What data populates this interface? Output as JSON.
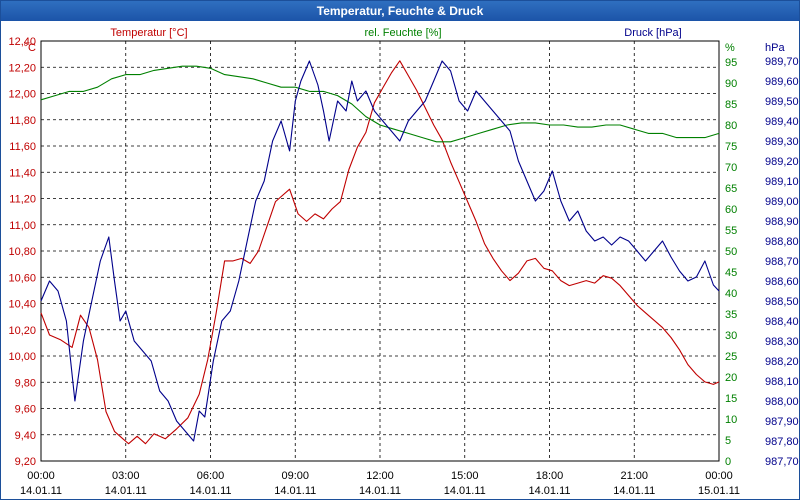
{
  "window": {
    "title": "Temperatur, Feuchte & Druck"
  },
  "chart_data": {
    "type": "line",
    "title": "Temperatur, Feuchte & Druck",
    "grid": true,
    "x": [
      "00:00",
      "03:00",
      "06:00",
      "09:00",
      "12:00",
      "15:00",
      "18:00",
      "21:00",
      "00:00"
    ],
    "x_dates": [
      "14.01.11",
      "14.01.11",
      "14.01.11",
      "14.01.11",
      "14.01.11",
      "14.01.11",
      "14.01.11",
      "14.01.11",
      "15.01.11"
    ],
    "xlim_hours": [
      0,
      24
    ],
    "axes": {
      "left": {
        "unit": "°C",
        "label": "Temperatur [°C]",
        "ylim": [
          9.2,
          12.6
        ],
        "color": "#c00000",
        "ticks": [
          "9,20",
          "9,40",
          "9,60",
          "9,80",
          "10,00",
          "10,20",
          "10,40",
          "10,60",
          "10,80",
          "11,00",
          "11,20",
          "11,40",
          "11,60",
          "11,80",
          "12,00",
          "12,20",
          "12,40"
        ]
      },
      "right1": {
        "unit": "%",
        "label": "rel. Feuchte [%]",
        "ylim": [
          0,
          100
        ],
        "color": "#008000",
        "ticks": [
          "0",
          "5",
          "10",
          "15",
          "20",
          "25",
          "30",
          "35",
          "40",
          "45",
          "50",
          "55",
          "60",
          "65",
          "70",
          "75",
          "80",
          "85",
          "90",
          "95"
        ]
      },
      "right2": {
        "unit": "hPa",
        "label": "Druck [hPa]",
        "ylim": [
          987.7,
          989.8
        ],
        "color": "#00008b",
        "ticks": [
          "987,70",
          "987,80",
          "987,90",
          "988,00",
          "988,10",
          "988,20",
          "988,30",
          "988,40",
          "988,50",
          "988,60",
          "988,70",
          "988,80",
          "988,90",
          "989,00",
          "989,10",
          "989,20",
          "989,30",
          "989,40",
          "989,50",
          "989,60",
          "989,70"
        ]
      }
    },
    "series": [
      {
        "name": "Temperatur [°C]",
        "axis": "left",
        "color": "#c00000",
        "x": [
          0,
          0.3,
          0.7,
          1.1,
          1.4,
          1.7,
          2.0,
          2.3,
          2.6,
          2.9,
          3.1,
          3.4,
          3.7,
          4.0,
          4.4,
          4.8,
          5.2,
          5.6,
          5.9,
          6.2,
          6.5,
          6.8,
          7.1,
          7.4,
          7.7,
          8.0,
          8.3,
          8.5,
          8.8,
          9.1,
          9.4,
          9.7,
          10.0,
          10.3,
          10.6,
          10.9,
          11.2,
          11.5,
          11.8,
          12.1,
          12.4,
          12.7,
          13.0,
          13.3,
          13.6,
          13.9,
          14.2,
          14.5,
          14.8,
          15.1,
          15.4,
          15.7,
          16.0,
          16.3,
          16.6,
          16.9,
          17.2,
          17.5,
          17.8,
          18.1,
          18.4,
          18.7,
          19.0,
          19.3,
          19.6,
          19.9,
          20.2,
          20.5,
          20.8,
          21.1,
          21.4,
          21.7,
          22.0,
          22.3,
          22.6,
          22.9,
          23.2,
          23.5,
          23.8,
          24.0
        ],
        "values": [
          10.4,
          10.22,
          10.18,
          10.12,
          10.38,
          10.28,
          10.02,
          9.6,
          9.44,
          9.38,
          9.34,
          9.4,
          9.34,
          9.42,
          9.38,
          9.46,
          9.55,
          9.74,
          10.02,
          10.4,
          10.82,
          10.82,
          10.84,
          10.8,
          10.9,
          11.1,
          11.3,
          11.34,
          11.4,
          11.2,
          11.14,
          11.2,
          11.16,
          11.24,
          11.3,
          11.56,
          11.74,
          11.86,
          12.1,
          12.22,
          12.34,
          12.44,
          12.32,
          12.2,
          12.06,
          11.92,
          11.8,
          11.62,
          11.46,
          11.3,
          11.14,
          10.96,
          10.84,
          10.74,
          10.66,
          10.72,
          10.82,
          10.84,
          10.76,
          10.74,
          10.66,
          10.62,
          10.64,
          10.66,
          10.64,
          10.7,
          10.68,
          10.62,
          10.54,
          10.46,
          10.4,
          10.34,
          10.28,
          10.2,
          10.1,
          9.98,
          9.9,
          9.84,
          9.82,
          9.84
        ]
      },
      {
        "name": "rel. Feuchte [%]",
        "axis": "right1",
        "color": "#008000",
        "x": [
          0,
          0.5,
          1.0,
          1.5,
          2.0,
          2.5,
          3.0,
          3.5,
          4.0,
          4.5,
          5.0,
          5.5,
          6.0,
          6.5,
          7.0,
          7.5,
          8.0,
          8.5,
          9.0,
          9.5,
          10.0,
          10.5,
          11.0,
          11.5,
          12.0,
          12.5,
          13.0,
          13.5,
          14.0,
          14.5,
          15.0,
          15.5,
          16.0,
          16.5,
          17.0,
          17.5,
          18.0,
          18.5,
          19.0,
          19.5,
          20.0,
          20.5,
          21.0,
          21.5,
          22.0,
          22.5,
          23.0,
          23.5,
          24.0
        ],
        "values": [
          86,
          87,
          88,
          88,
          89,
          91,
          92,
          92,
          93,
          93.5,
          94,
          94,
          93.5,
          92,
          91.5,
          91,
          90,
          89,
          89,
          88,
          88,
          87,
          85,
          82,
          80,
          79,
          78,
          77,
          76,
          76,
          77,
          78,
          79,
          80,
          80.5,
          80.5,
          80,
          80,
          79.5,
          79.5,
          80,
          80,
          79,
          78,
          78,
          77,
          77,
          77,
          78
        ]
      },
      {
        "name": "Druck [hPa]",
        "axis": "right2",
        "color": "#00008b",
        "x": [
          0,
          0.3,
          0.6,
          0.9,
          1.2,
          1.5,
          1.8,
          2.1,
          2.4,
          2.6,
          2.8,
          3.0,
          3.3,
          3.6,
          3.9,
          4.2,
          4.5,
          4.8,
          5.1,
          5.4,
          5.6,
          5.8,
          6.1,
          6.4,
          6.7,
          7.0,
          7.3,
          7.6,
          7.9,
          8.2,
          8.5,
          8.8,
          9.0,
          9.2,
          9.5,
          9.8,
          10.0,
          10.2,
          10.5,
          10.8,
          11.0,
          11.2,
          11.5,
          11.8,
          12.1,
          12.4,
          12.7,
          13.0,
          13.3,
          13.6,
          13.9,
          14.2,
          14.5,
          14.8,
          15.1,
          15.4,
          15.7,
          16.0,
          16.3,
          16.6,
          16.9,
          17.2,
          17.5,
          17.8,
          18.1,
          18.4,
          18.7,
          19.0,
          19.3,
          19.6,
          19.9,
          20.2,
          20.5,
          20.8,
          21.1,
          21.4,
          21.7,
          22.0,
          22.3,
          22.6,
          22.9,
          23.2,
          23.5,
          23.8,
          24.0
        ],
        "values": [
          988.5,
          988.6,
          988.55,
          988.4,
          988.0,
          988.3,
          988.5,
          988.7,
          988.82,
          988.6,
          988.4,
          988.45,
          988.3,
          988.25,
          988.2,
          988.05,
          988.0,
          987.9,
          987.85,
          987.8,
          987.95,
          987.92,
          988.2,
          988.4,
          988.45,
          988.6,
          988.8,
          989.0,
          989.1,
          989.3,
          989.4,
          989.25,
          989.5,
          989.6,
          989.7,
          989.58,
          989.45,
          989.3,
          989.5,
          989.45,
          989.6,
          989.5,
          989.55,
          989.45,
          989.4,
          989.35,
          989.3,
          989.4,
          989.45,
          989.5,
          989.6,
          989.7,
          989.65,
          989.5,
          989.45,
          989.55,
          989.5,
          989.45,
          989.4,
          989.35,
          989.2,
          989.1,
          989.0,
          989.05,
          989.15,
          989.0,
          988.9,
          988.95,
          988.85,
          988.8,
          988.82,
          988.78,
          988.82,
          988.8,
          988.75,
          988.7,
          988.75,
          988.8,
          988.72,
          988.65,
          988.6,
          988.62,
          988.7,
          988.58,
          988.55
        ]
      }
    ]
  }
}
